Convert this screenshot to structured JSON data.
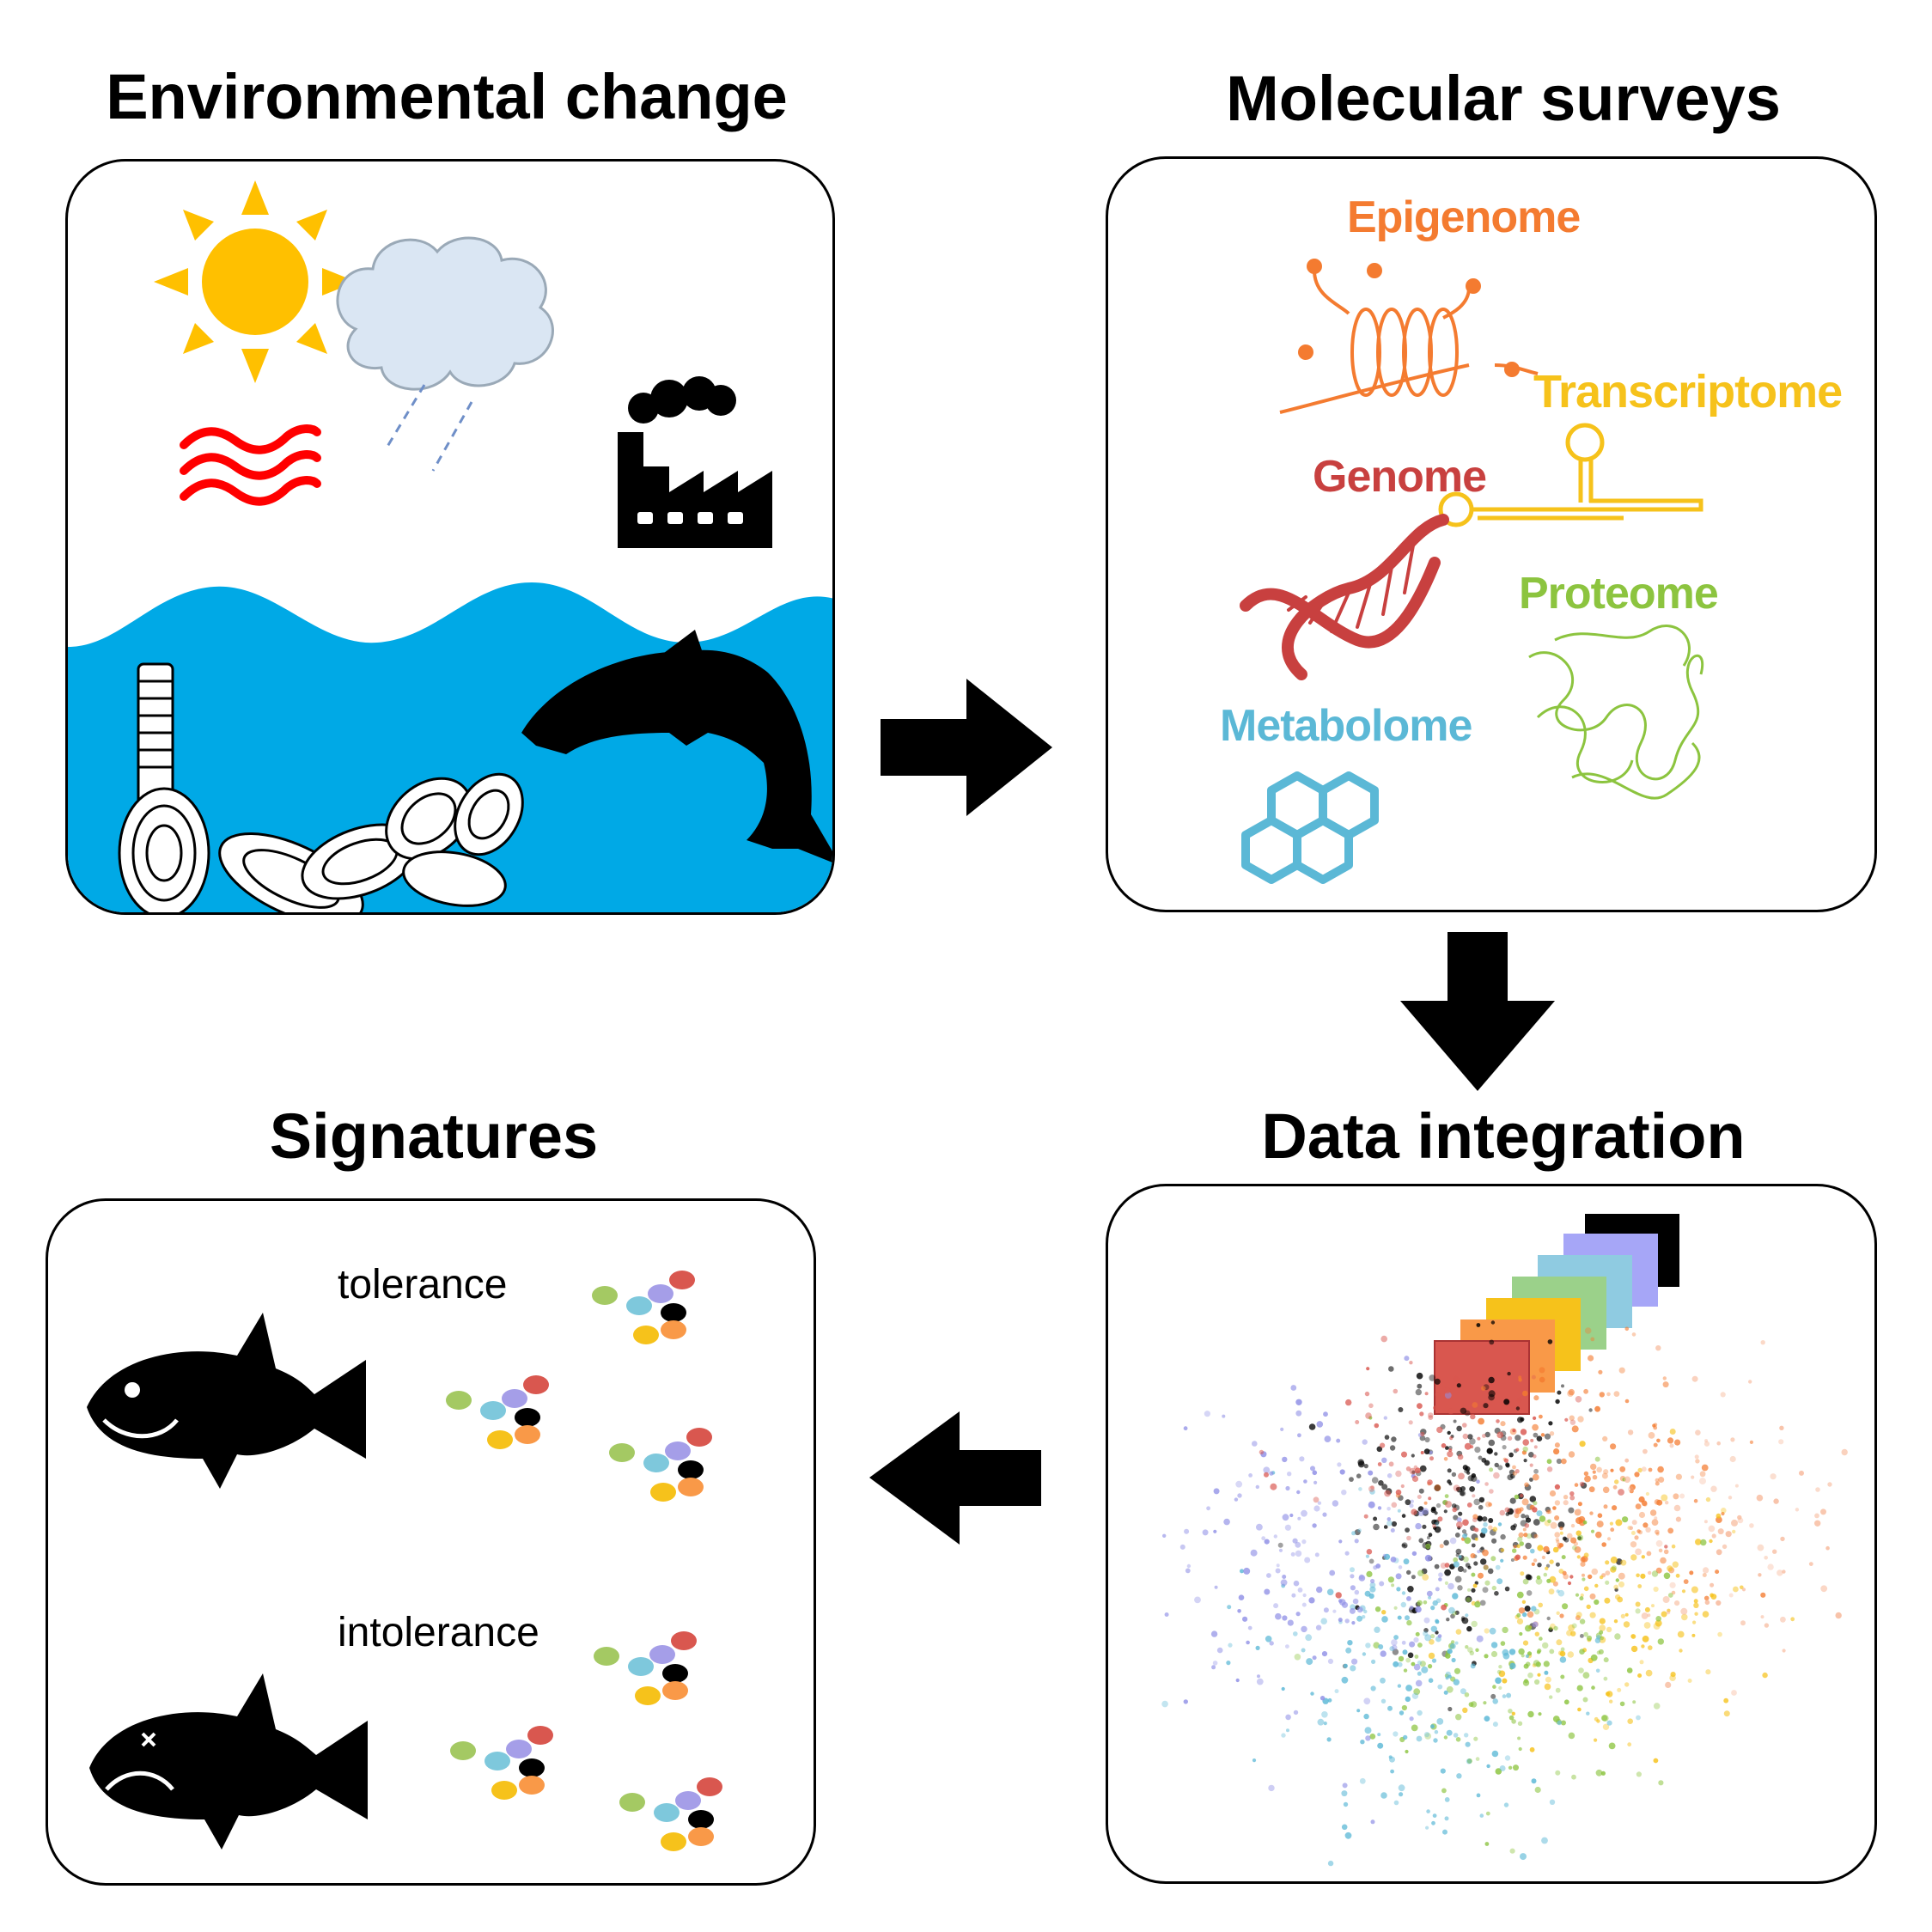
{
  "titles": {
    "env": "Environmental change",
    "molecular": "Molecular surveys",
    "integration": "Data integration",
    "signatures": "Signatures"
  },
  "omics": {
    "epigenome": "Epigenome",
    "transcriptome": "Transcriptome",
    "genome": "Genome",
    "proteome": "Proteome",
    "metabolome": "Metabolome"
  },
  "signatures": {
    "tolerance": "tolerance",
    "intolerance": "intolerance"
  },
  "colors": {
    "epigenome": "#f47b30",
    "transcriptome": "#f6c21b",
    "genome": "#c8403f",
    "proteome": "#8cc43f",
    "metabolome": "#5bb8d6",
    "water": "#00a9e6",
    "sun": "#ffc000",
    "heat": "#ff0000",
    "cloud": "#dae6f3"
  },
  "icons": [
    "sun-icon",
    "cloud-icon",
    "heat-waves-icon",
    "factory-icon",
    "fish-icon",
    "barnacle-icon",
    "oyster-icon",
    "dna-icon",
    "rna-icon",
    "protein-icon",
    "molecule-icon",
    "happy-fish-icon",
    "dead-fish-icon",
    "arrow-right-icon",
    "arrow-down-icon",
    "arrow-left-icon"
  ]
}
